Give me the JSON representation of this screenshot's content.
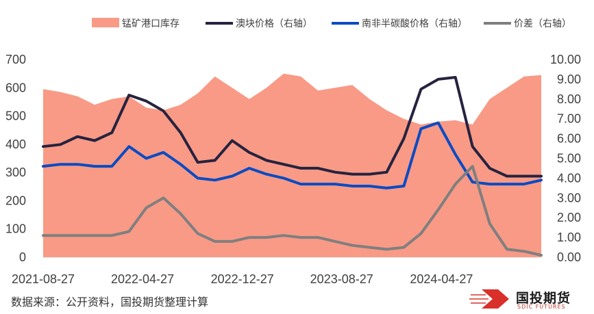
{
  "chart_data": {
    "type": "area+line",
    "x": [
      "2021-08-27",
      "2021-10-08",
      "2021-11-19",
      "2021-12-31",
      "2022-02-11",
      "2022-03-25",
      "2022-05-06",
      "2022-06-17",
      "2022-07-29",
      "2022-09-09",
      "2022-10-21",
      "2022-12-02",
      "2023-01-13",
      "2023-02-24",
      "2023-04-07",
      "2023-05-19",
      "2023-06-30",
      "2023-08-11",
      "2023-09-22",
      "2023-11-03",
      "2023-12-15",
      "2024-01-26",
      "2024-03-08",
      "2024-04-19",
      "2024-05-31",
      "2024-07-12",
      "2024-08-23",
      "2024-10-04",
      "2024-11-15",
      "2024-12-27"
    ],
    "x_ticks": [
      "2021-08-27",
      "2022-04-27",
      "2022-12-27",
      "2023-08-27",
      "2024-04-27"
    ],
    "left_axis": {
      "ylim": [
        0,
        700
      ],
      "ticks": [
        "0",
        "100",
        "200",
        "300",
        "400",
        "500",
        "600",
        "700"
      ]
    },
    "right_axis": {
      "ylim": [
        0,
        10
      ],
      "ticks": [
        "0.00",
        "1.00",
        "2.00",
        "3.00",
        "4.00",
        "5.00",
        "6.00",
        "7.00",
        "8.00",
        "9.00",
        "10.00"
      ]
    },
    "series": [
      {
        "name": "锰矿港口库存",
        "axis": "left",
        "kind": "area",
        "color": "#F89A86",
        "values": [
          595,
          585,
          570,
          540,
          560,
          570,
          530,
          520,
          540,
          580,
          640,
          600,
          560,
          600,
          650,
          640,
          590,
          600,
          610,
          560,
          520,
          490,
          470,
          480,
          485,
          470,
          560,
          600,
          640,
          645
        ]
      },
      {
        "name": "澳块价格（右轴）",
        "axis": "right",
        "kind": "line",
        "color": "#25233F",
        "values": [
          5.6,
          5.7,
          6.1,
          5.9,
          6.3,
          8.2,
          7.9,
          7.4,
          6.3,
          4.8,
          4.9,
          5.9,
          5.3,
          4.9,
          4.7,
          4.5,
          4.5,
          4.3,
          4.2,
          4.2,
          4.3,
          6.0,
          8.5,
          9.0,
          9.1,
          5.6,
          4.5,
          4.1,
          4.1,
          4.1
        ]
      },
      {
        "name": "南非半碳酸价格（右轴）",
        "axis": "right",
        "kind": "line",
        "color": "#0A4BC4",
        "values": [
          4.6,
          4.7,
          4.7,
          4.6,
          4.6,
          5.6,
          5.0,
          5.3,
          4.7,
          4.0,
          3.9,
          4.1,
          4.5,
          4.2,
          4.0,
          3.7,
          3.7,
          3.7,
          3.6,
          3.6,
          3.5,
          3.6,
          6.5,
          6.8,
          5.2,
          3.8,
          3.7,
          3.7,
          3.7,
          3.9
        ]
      },
      {
        "name": "价差（右轴）",
        "axis": "right",
        "kind": "line",
        "color": "#7F7F7F",
        "values": [
          1.1,
          1.1,
          1.1,
          1.1,
          1.1,
          1.3,
          2.5,
          3.0,
          2.2,
          1.2,
          0.8,
          0.8,
          1.0,
          1.0,
          1.1,
          1.0,
          1.0,
          0.8,
          0.6,
          0.5,
          0.4,
          0.5,
          1.2,
          2.4,
          3.7,
          4.6,
          1.7,
          0.4,
          0.3,
          0.1
        ]
      }
    ]
  },
  "source_text": "数据来源：公开资料，国投期货整理计算",
  "logo": {
    "name": "国投期货",
    "sub": "SDIC FUTURES",
    "color": "#D9302A"
  }
}
